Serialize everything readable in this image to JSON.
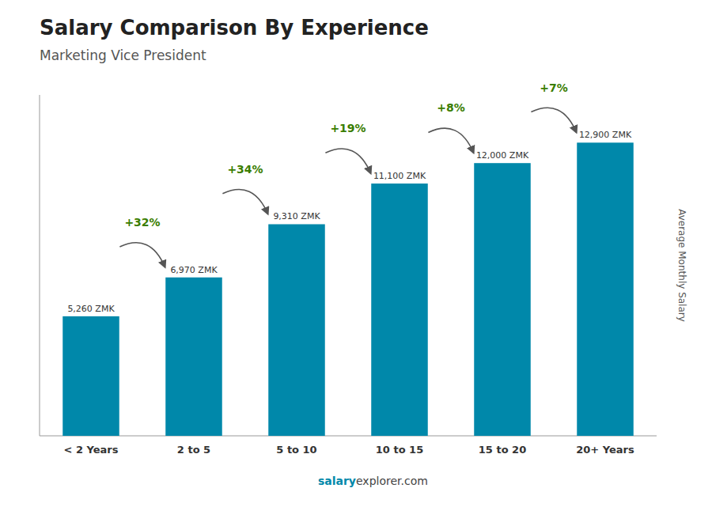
{
  "chart_data": {
    "type": "bar",
    "title": "Salary Comparison By Experience",
    "subtitle": "Marketing Vice President",
    "categories": [
      "< 2 Years",
      "2 to 5",
      "5 to 10",
      "10 to 15",
      "15 to 20",
      "20+ Years"
    ],
    "values": [
      5260,
      6970,
      9310,
      11100,
      12000,
      12900
    ],
    "value_labels": [
      "5,260 ZMK",
      "6,970 ZMK",
      "9,310 ZMK",
      "11,100 ZMK",
      "12,000 ZMK",
      "12,900 ZMK"
    ],
    "data_labels": true,
    "annotations": [
      "+32%",
      "+34%",
      "+19%",
      "+8%",
      "+7%"
    ],
    "y_label": "Average Monthly Salary",
    "footer": [
      "salary",
      "explorer.com"
    ],
    "color": "#0088aa",
    "ylim": [
      0,
      15000
    ],
    "grid": false,
    "tick_labels": "x"
  }
}
